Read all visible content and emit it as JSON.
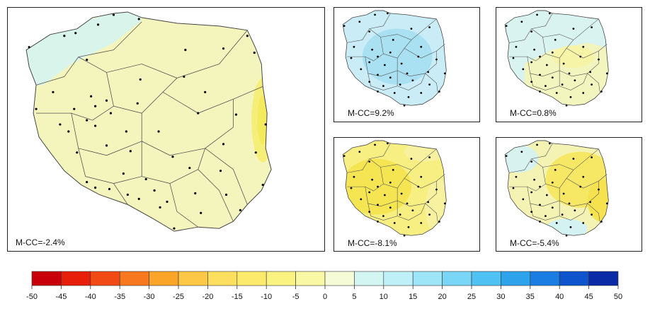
{
  "colors": {
    "main_fill": "#f4f5b8",
    "border": "#333333",
    "dot": "#000000"
  },
  "panels": [
    {
      "id": "main",
      "label": "M-CC=-2.4%"
    },
    {
      "id": "s1",
      "label": "M-CC=9.2%"
    },
    {
      "id": "s2",
      "label": "M-CC=0.8%"
    },
    {
      "id": "s3",
      "label": "M-CC=-8.1%"
    },
    {
      "id": "s4",
      "label": "M-CC=-5.4%"
    }
  ],
  "legend": {
    "ticks": [
      "-50",
      "-45",
      "-40",
      "-35",
      "-30",
      "-25",
      "-20",
      "-15",
      "-10",
      "-5",
      "0",
      "5",
      "10",
      "15",
      "20",
      "25",
      "30",
      "35",
      "40",
      "45",
      "50"
    ],
    "colors": [
      "#c8000a",
      "#e61e0a",
      "#f24a14",
      "#f7781e",
      "#fba528",
      "#fcc846",
      "#fcdf5f",
      "#fbea6b",
      "#fbf381",
      "#f9f8a4",
      "#f5fbd6",
      "#d4f6f2",
      "#bff0f8",
      "#9ee5f8",
      "#79d6f7",
      "#4fc2f3",
      "#2fa2ec",
      "#1b7ce2",
      "#0e54cd",
      "#0a2aa6"
    ]
  }
}
